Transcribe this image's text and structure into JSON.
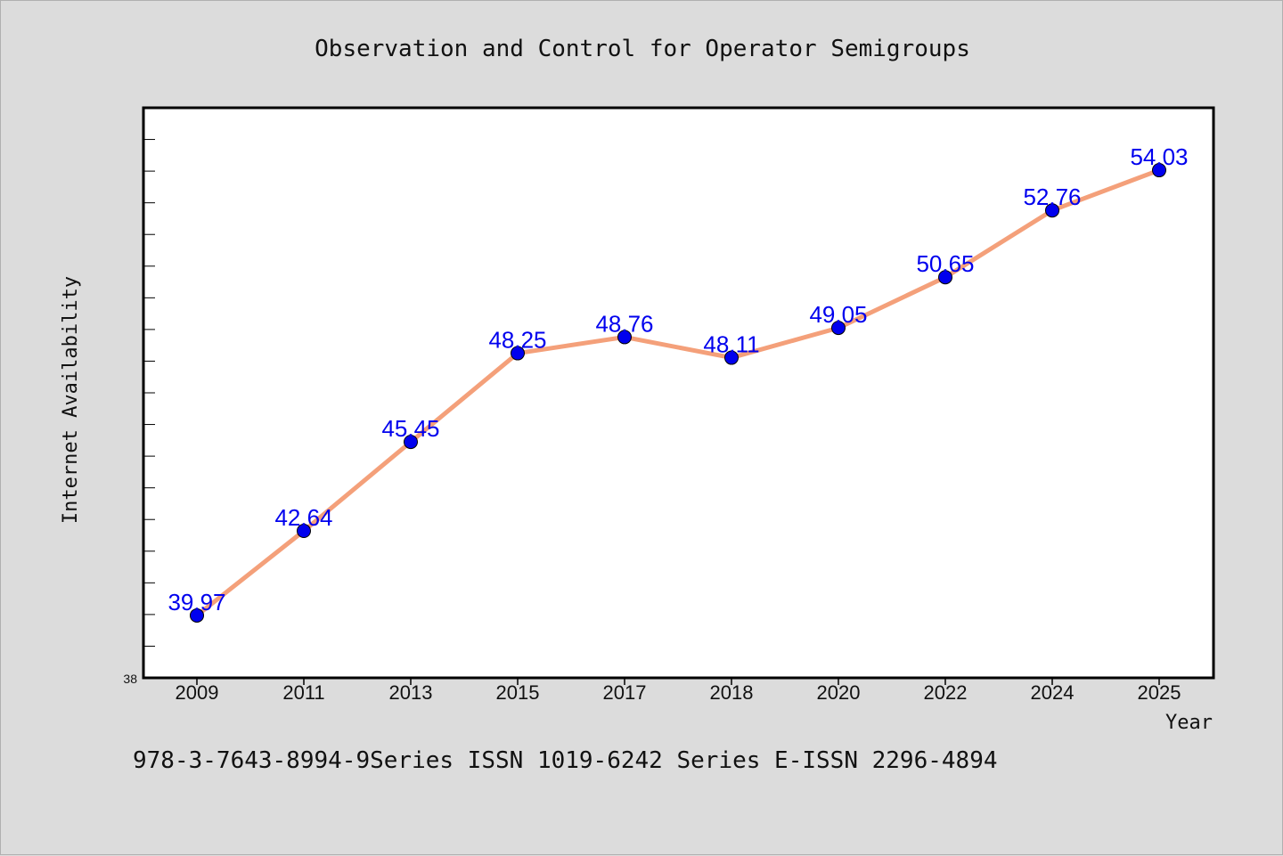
{
  "chart_data": {
    "type": "line",
    "title": "Observation and Control for Operator Semigroups",
    "xlabel": "Year",
    "ylabel": "Internet Availability",
    "categories": [
      "2009",
      "2011",
      "2013",
      "2015",
      "2017",
      "2018",
      "2020",
      "2022",
      "2024",
      "2025"
    ],
    "series": [
      {
        "values": [
          39.97,
          42.64,
          45.45,
          48.25,
          48.76,
          48.11,
          49.05,
          50.65,
          52.76,
          54.03
        ],
        "labels": [
          "39.97",
          "42.64",
          "45.45",
          "48.25",
          "48.76",
          "48.11",
          "49.05",
          "50.65",
          "52.76",
          "54.03"
        ]
      }
    ],
    "ylim": [
      38,
      56
    ],
    "y_min_label": "38",
    "grid": false,
    "line_color": "#f4a07a",
    "marker_color": "#0000ee",
    "label_color": "#0000ee"
  },
  "footer": {
    "text": "978-3-7643-8994-9Series ISSN 1019-6242 Series E-ISSN 2296-4894"
  }
}
